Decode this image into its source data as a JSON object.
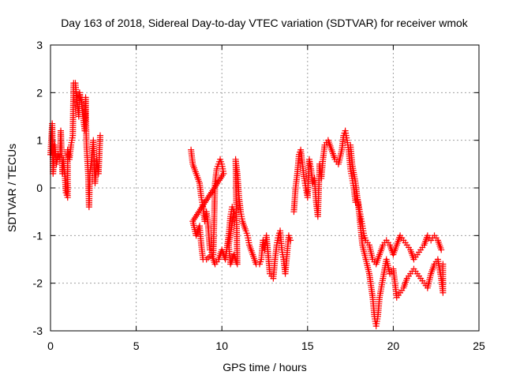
{
  "chart_data": {
    "type": "scatter",
    "title": "Day 163 of 2018, Sidereal Day-to-day VTEC variation (SDTVAR) for receiver wmok",
    "xlabel": "GPS time / hours",
    "ylabel": "SDTVAR / TECUs",
    "xlim": [
      0,
      25
    ],
    "ylim": [
      -3,
      3
    ],
    "xticks": [
      0,
      5,
      10,
      15,
      20,
      25
    ],
    "yticks": [
      -3,
      -2,
      -1,
      0,
      1,
      2,
      3
    ],
    "grid": true,
    "marker": "+",
    "series": [
      {
        "name": "SDTVAR",
        "color": "#ff0000",
        "segments": [
          [
            [
              0.0,
              0.7
            ],
            [
              0.1,
              1.35
            ],
            [
              0.15,
              0.3
            ],
            [
              0.25,
              0.9
            ],
            [
              0.35,
              0.5
            ],
            [
              0.45,
              0.7
            ],
            [
              0.55,
              0.6
            ],
            [
              0.6,
              1.2
            ],
            [
              0.7,
              0.3
            ],
            [
              0.75,
              0.6
            ],
            [
              0.85,
              0.2
            ],
            [
              0.9,
              -0.1
            ],
            [
              1.0,
              -0.2
            ],
            [
              1.0,
              0.8
            ],
            [
              1.1,
              0.6
            ],
            [
              1.2,
              0.9
            ],
            [
              1.3,
              1.1
            ],
            [
              1.35,
              2.2
            ],
            [
              1.45,
              2.2
            ],
            [
              1.55,
              1.8
            ],
            [
              1.65,
              1.5
            ],
            [
              1.7,
              2.0
            ],
            [
              1.8,
              1.8
            ],
            [
              1.9,
              1.5
            ],
            [
              2.0,
              1.2
            ],
            [
              2.05,
              1.9
            ],
            [
              2.1,
              0.9
            ],
            [
              2.2,
              0.3
            ],
            [
              2.25,
              -0.4
            ],
            [
              2.3,
              0.3
            ],
            [
              2.4,
              0.6
            ],
            [
              2.5,
              1.0
            ],
            [
              2.6,
              0.1
            ],
            [
              2.7,
              0.6
            ],
            [
              2.8,
              0.3
            ],
            [
              2.9,
              1.1
            ]
          ],
          [
            [
              8.2,
              0.8
            ],
            [
              8.3,
              0.5
            ],
            [
              8.5,
              0.3
            ],
            [
              8.7,
              0.1
            ],
            [
              8.8,
              -0.2
            ],
            [
              8.9,
              -0.4
            ],
            [
              9.0,
              -0.7
            ],
            [
              9.1,
              -0.5
            ],
            [
              9.2,
              -0.8
            ],
            [
              9.3,
              -1.3
            ],
            [
              9.5,
              -1.4
            ],
            [
              9.6,
              0.1
            ],
            [
              9.7,
              0.4
            ],
            [
              9.8,
              0.5
            ],
            [
              9.9,
              0.6
            ],
            [
              10.0,
              0.5
            ],
            [
              10.1,
              0.3
            ],
            [
              8.3,
              -0.7
            ],
            [
              8.5,
              -1.0
            ],
            [
              8.7,
              -0.8
            ],
            [
              8.8,
              -1.2
            ],
            [
              8.9,
              -1.5
            ],
            [
              9.1,
              -1.5
            ],
            [
              9.4,
              -1.4
            ],
            [
              9.6,
              -1.6
            ],
            [
              9.8,
              -1.5
            ],
            [
              10.0,
              -1.3
            ],
            [
              10.2,
              -1.5
            ],
            [
              10.4,
              -1.0
            ],
            [
              10.5,
              -0.6
            ],
            [
              10.6,
              -0.4
            ],
            [
              10.7,
              -0.5
            ],
            [
              10.4,
              -1.2
            ],
            [
              10.5,
              -1.6
            ],
            [
              10.7,
              -1.4
            ],
            [
              10.9,
              -1.6
            ],
            [
              10.8,
              0.6
            ],
            [
              10.9,
              0.3
            ],
            [
              11.0,
              -0.2
            ],
            [
              11.1,
              -0.5
            ],
            [
              11.2,
              -0.7
            ],
            [
              11.4,
              -0.9
            ],
            [
              11.5,
              -1.0
            ],
            [
              11.6,
              -1.2
            ],
            [
              11.8,
              -1.4
            ],
            [
              12.0,
              -1.6
            ],
            [
              12.2,
              -1.6
            ],
            [
              12.3,
              -1.5
            ],
            [
              12.4,
              -1.1
            ],
            [
              12.5,
              -1.3
            ],
            [
              12.6,
              -1.0
            ],
            [
              12.8,
              -1.8
            ],
            [
              13.0,
              -1.9
            ],
            [
              13.1,
              -1.5
            ],
            [
              13.2,
              -1.2
            ],
            [
              13.3,
              -1.0
            ],
            [
              13.4,
              -0.9
            ],
            [
              13.5,
              -1.3
            ],
            [
              13.6,
              -1.5
            ],
            [
              13.7,
              -1.8
            ],
            [
              13.8,
              -1.4
            ],
            [
              13.9,
              -1.0
            ],
            [
              14.0,
              -1.1
            ]
          ],
          [
            [
              14.2,
              -0.5
            ],
            [
              14.3,
              0.0
            ],
            [
              14.4,
              0.3
            ],
            [
              14.5,
              0.7
            ],
            [
              14.6,
              0.8
            ],
            [
              14.7,
              0.5
            ],
            [
              14.8,
              0.2
            ],
            [
              14.9,
              0.0
            ],
            [
              15.0,
              -0.2
            ],
            [
              15.1,
              0.6
            ],
            [
              15.2,
              0.4
            ],
            [
              15.3,
              0.1
            ],
            [
              15.4,
              0.2
            ],
            [
              15.5,
              -0.3
            ],
            [
              15.6,
              -0.6
            ],
            [
              15.7,
              0.5
            ],
            [
              15.8,
              0.2
            ],
            [
              15.9,
              0.6
            ],
            [
              16.0,
              0.9
            ],
            [
              16.2,
              1.0
            ],
            [
              16.4,
              0.8
            ],
            [
              16.6,
              0.6
            ],
            [
              16.8,
              0.5
            ],
            [
              17.0,
              0.8
            ],
            [
              17.1,
              1.1
            ],
            [
              17.2,
              1.2
            ],
            [
              17.3,
              1.0
            ],
            [
              17.4,
              0.8
            ],
            [
              17.5,
              0.4
            ],
            [
              17.6,
              0.2
            ],
            [
              17.7,
              0.0
            ],
            [
              17.8,
              -0.3
            ],
            [
              17.9,
              -0.2
            ],
            [
              18.0,
              -0.4
            ],
            [
              18.1,
              -0.6
            ],
            [
              18.2,
              -0.8
            ],
            [
              18.3,
              -1.0
            ],
            [
              18.4,
              -1.1
            ],
            [
              18.6,
              -1.2
            ],
            [
              18.8,
              -1.5
            ],
            [
              19.0,
              -1.6
            ],
            [
              19.2,
              -1.4
            ],
            [
              19.4,
              -1.2
            ],
            [
              19.6,
              -1.1
            ],
            [
              19.8,
              -1.2
            ],
            [
              20.0,
              -1.4
            ],
            [
              20.2,
              -1.2
            ],
            [
              20.4,
              -1.0
            ],
            [
              20.6,
              -1.1
            ],
            [
              20.8,
              -1.2
            ],
            [
              21.0,
              -1.3
            ],
            [
              21.2,
              -1.5
            ],
            [
              21.4,
              -1.4
            ],
            [
              21.6,
              -1.3
            ],
            [
              21.8,
              -1.2
            ],
            [
              22.0,
              -1.0
            ],
            [
              22.2,
              -1.1
            ],
            [
              22.4,
              -1.0
            ],
            [
              22.6,
              -1.1
            ],
            [
              22.8,
              -1.3
            ]
          ],
          [
            [
              17.5,
              0.9
            ],
            [
              17.6,
              0.5
            ],
            [
              17.8,
              0.1
            ],
            [
              18.0,
              -0.5
            ],
            [
              18.2,
              -1.2
            ],
            [
              18.4,
              -1.5
            ],
            [
              18.6,
              -1.8
            ],
            [
              18.8,
              -2.3
            ],
            [
              18.9,
              -2.7
            ],
            [
              19.0,
              -2.9
            ],
            [
              19.1,
              -2.7
            ],
            [
              19.2,
              -2.3
            ],
            [
              19.4,
              -1.9
            ],
            [
              19.6,
              -1.5
            ],
            [
              19.8,
              -1.8
            ],
            [
              20.0,
              -1.7
            ],
            [
              20.2,
              -2.3
            ],
            [
              20.4,
              -2.2
            ],
            [
              20.6,
              -2.1
            ],
            [
              20.8,
              -1.9
            ],
            [
              21.0,
              -1.8
            ],
            [
              21.2,
              -1.7
            ],
            [
              21.4,
              -1.8
            ],
            [
              21.6,
              -1.9
            ],
            [
              21.8,
              -2.0
            ],
            [
              22.0,
              -2.1
            ],
            [
              22.2,
              -1.8
            ],
            [
              22.4,
              -1.6
            ],
            [
              22.6,
              -1.5
            ],
            [
              22.8,
              -1.9
            ],
            [
              22.9,
              -2.2
            ],
            [
              22.9,
              -1.6
            ]
          ]
        ]
      }
    ]
  }
}
